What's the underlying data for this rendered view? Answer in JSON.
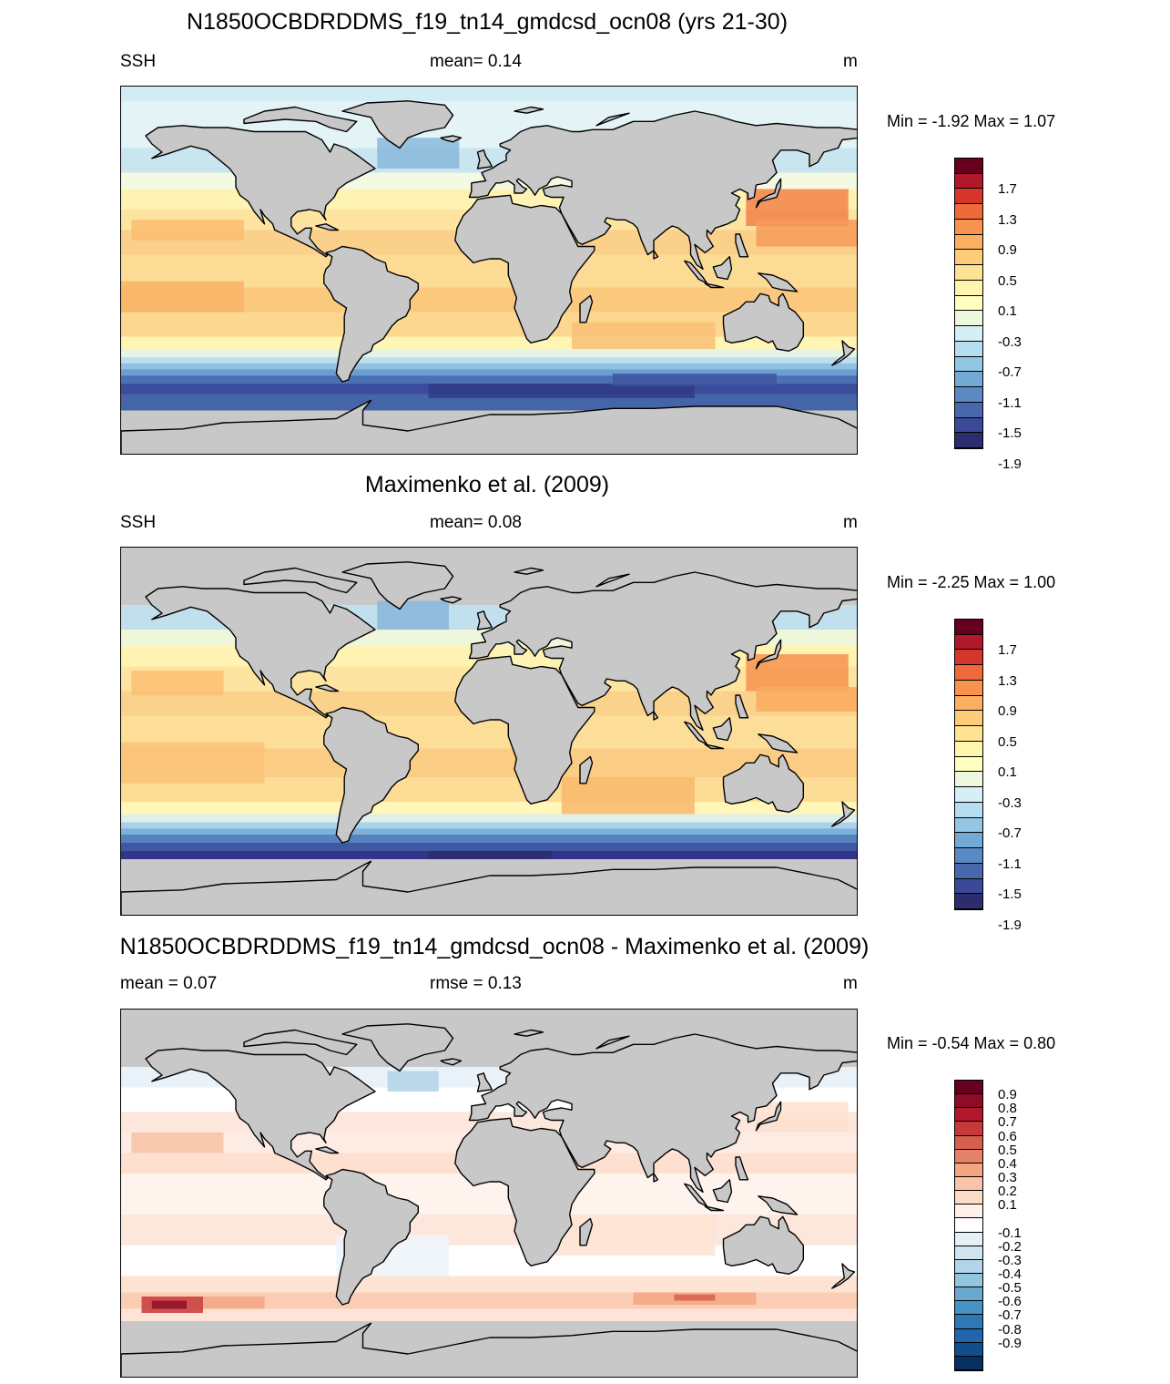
{
  "panels": [
    {
      "title": "N1850OCBDRDDMS_f19_tn14_gmdcsd_ocn08 (yrs 21-30)",
      "left_label": "SSH",
      "center_label": "mean=   0.14",
      "units": "m",
      "minmax": "Min =  -1.92 Max =    1.07",
      "colorbar_labels": [
        "1.7",
        "1.3",
        "0.9",
        "0.5",
        "0.1",
        "-0.3",
        "-0.7",
        "-1.1",
        "-1.5",
        "-1.9"
      ],
      "colorbar_colors": [
        "#67001f",
        "#b2182b",
        "#d6352a",
        "#ef6a3b",
        "#f7924f",
        "#fbb061",
        "#fdcc78",
        "#fee394",
        "#fff5ad",
        "#ffffbf",
        "#edf8df",
        "#d6eef5",
        "#b6def0",
        "#93c6e3",
        "#73a9d5",
        "#5a8ac3",
        "#4868ae",
        "#3b4a97",
        "#2c2d6e"
      ],
      "map_style": "model"
    },
    {
      "title": "Maximenko et al. (2009)",
      "left_label": "SSH",
      "center_label": "mean=   0.08",
      "units": "m",
      "minmax": "Min =  -2.25 Max =    1.00",
      "colorbar_labels": [
        "1.7",
        "1.3",
        "0.9",
        "0.5",
        "0.1",
        "-0.3",
        "-0.7",
        "-1.1",
        "-1.5",
        "-1.9"
      ],
      "colorbar_colors": [
        "#67001f",
        "#b2182b",
        "#d6352a",
        "#ef6a3b",
        "#f7924f",
        "#fbb061",
        "#fdcc78",
        "#fee394",
        "#fff5ad",
        "#ffffbf",
        "#edf8df",
        "#d6eef5",
        "#b6def0",
        "#93c6e3",
        "#73a9d5",
        "#5a8ac3",
        "#4868ae",
        "#3b4a97",
        "#2c2d6e"
      ],
      "map_style": "obs"
    },
    {
      "title": "N1850OCBDRDDMS_f19_tn14_gmdcsd_ocn08 - Maximenko et al. (2009)",
      "left_label": "mean =   0.07",
      "center_label": "rmse =   0.13",
      "units": "m",
      "minmax": "Min =  -0.54 Max =    0.80",
      "colorbar_labels": [
        "0.9",
        "0.8",
        "0.7",
        "0.6",
        "0.5",
        "0.4",
        "0.3",
        "0.2",
        "0.1",
        "-0.1",
        "-0.2",
        "-0.3",
        "-0.4",
        "-0.5",
        "-0.6",
        "-0.7",
        "-0.8",
        "-0.9"
      ],
      "colorbar_colors": [
        "#67001f",
        "#8e0d26",
        "#b2182b",
        "#c7383a",
        "#d6604d",
        "#e58267",
        "#f4a582",
        "#f8c3a6",
        "#fddbc7",
        "#fff1e9",
        "#ffffff",
        "#e6f0f7",
        "#d1e5f0",
        "#b2d4e8",
        "#92c5de",
        "#6aa8d0",
        "#4393c3",
        "#2f78b5",
        "#2166ac",
        "#134e8c",
        "#053061"
      ],
      "map_style": "diff"
    }
  ]
}
